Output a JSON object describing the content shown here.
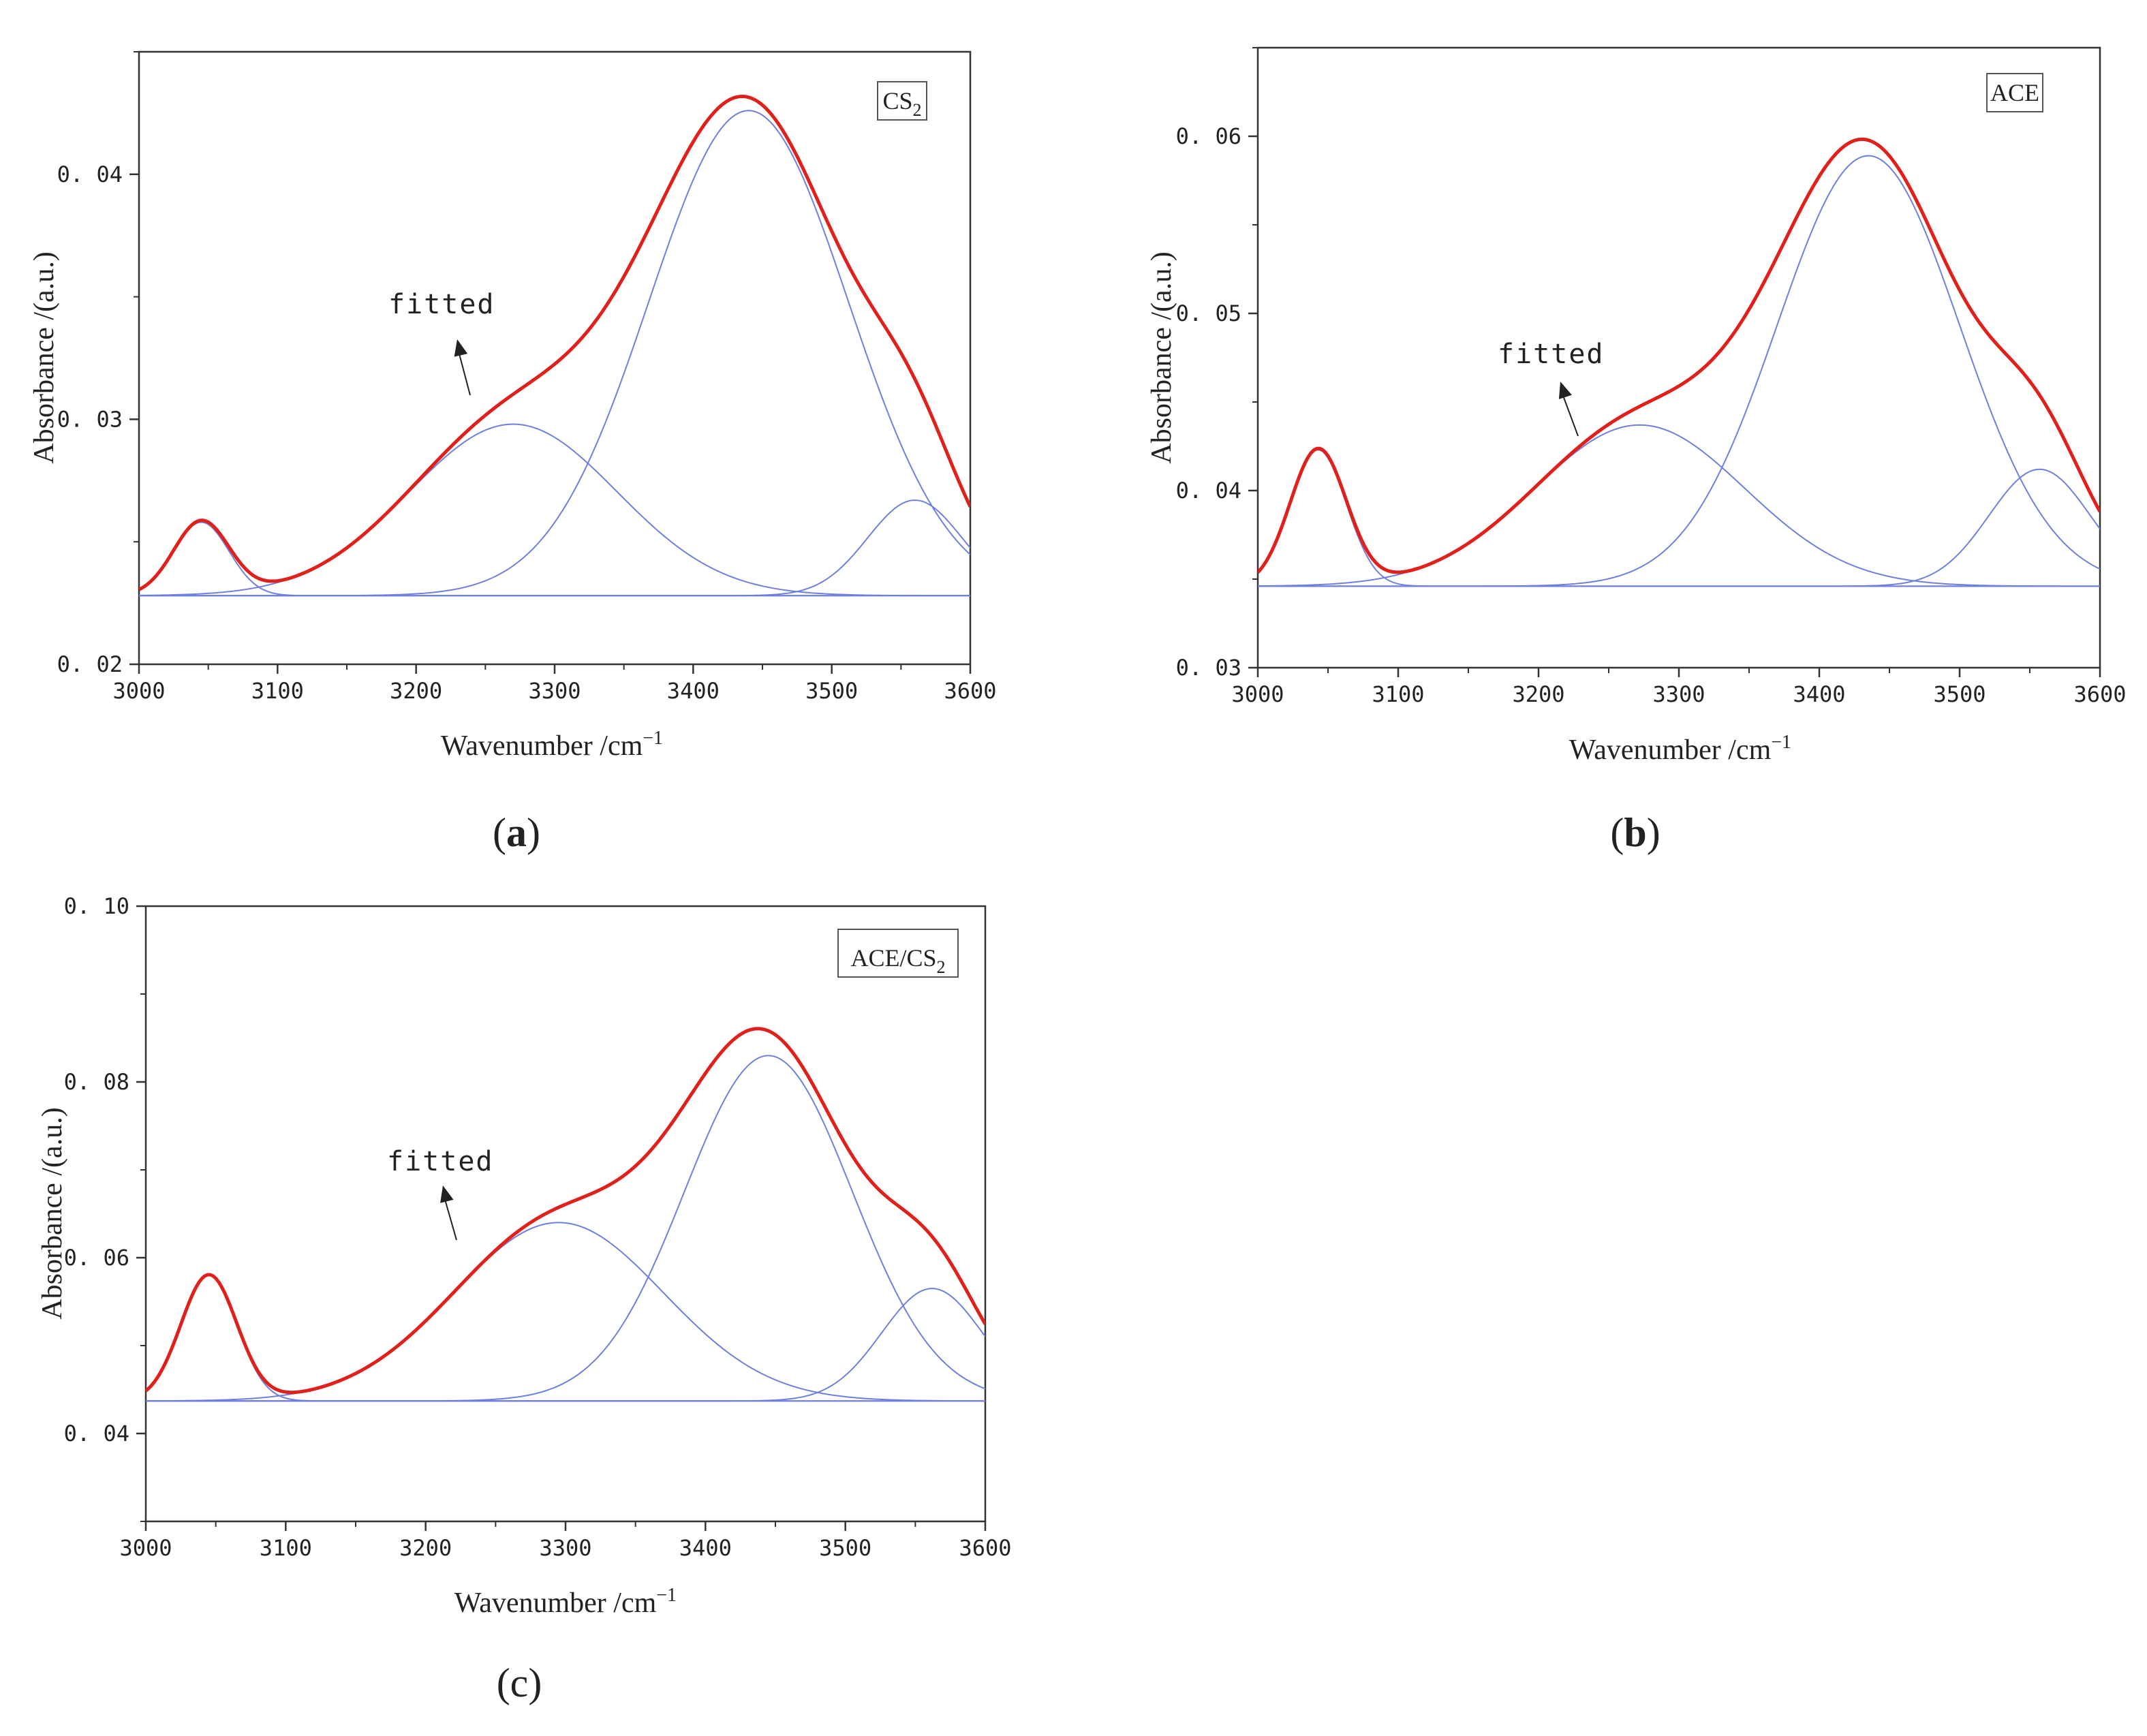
{
  "chart_data": [
    {
      "id": "a",
      "type": "line",
      "panel_label": "a",
      "panel_label_bold": true,
      "legend": {
        "main": "CS",
        "sub": "2"
      },
      "annotation": "fitted",
      "xlabel": {
        "main": "Wavenumber /cm",
        "sup": "−1"
      },
      "ylabel": "Absorbance /(a.u.)",
      "xlim": [
        3000,
        3600
      ],
      "ylim": [
        0.02,
        0.045
      ],
      "xticks": [
        3000,
        3100,
        3200,
        3300,
        3400,
        3500,
        3600
      ],
      "xtick_labels": [
        "3000",
        "3100",
        "3200",
        "3300",
        "3400",
        "3500",
        "3600"
      ],
      "yticks": [
        0.02,
        0.03,
        0.04
      ],
      "ytick_labels": [
        "0. 02",
        "0. 03",
        "0. 04"
      ],
      "baseline": 0.0228,
      "components": [
        {
          "center": 3045,
          "height": 0.003,
          "sigma": 20
        },
        {
          "center": 3270,
          "height": 0.007,
          "sigma": 75
        },
        {
          "center": 3440,
          "height": 0.0198,
          "sigma": 72
        },
        {
          "center": 3560,
          "height": 0.0039,
          "sigma": 34
        }
      ],
      "colors": {
        "fitted": "#e0201b",
        "component": "#6f7fe0"
      }
    },
    {
      "id": "b",
      "type": "line",
      "panel_label": "b",
      "panel_label_bold": true,
      "legend": {
        "main": "ACE",
        "sub": ""
      },
      "annotation": "fitted",
      "xlabel": {
        "main": "Wavenumber /cm",
        "sup": "−1"
      },
      "ylabel": "Absorbance /(a.u.)",
      "xlim": [
        3000,
        3600
      ],
      "ylim": [
        0.03,
        0.065
      ],
      "xticks": [
        3000,
        3100,
        3200,
        3300,
        3400,
        3500,
        3600
      ],
      "xtick_labels": [
        "3000",
        "3100",
        "3200",
        "3300",
        "3400",
        "3500",
        "3600"
      ],
      "yticks": [
        0.03,
        0.04,
        0.05,
        0.06
      ],
      "ytick_labels": [
        "0. 03",
        "0. 04",
        "0. 05",
        "0. 06"
      ],
      "baseline": 0.0346,
      "components": [
        {
          "center": 3043,
          "height": 0.0077,
          "sigma": 20
        },
        {
          "center": 3272,
          "height": 0.0091,
          "sigma": 75
        },
        {
          "center": 3435,
          "height": 0.0243,
          "sigma": 65
        },
        {
          "center": 3557,
          "height": 0.0066,
          "sigma": 36
        }
      ],
      "colors": {
        "fitted": "#e0201b",
        "component": "#6f7fe0"
      }
    },
    {
      "id": "c",
      "type": "line",
      "panel_label": "c",
      "panel_label_bold": false,
      "legend": {
        "main": "ACE/CS",
        "sub": "2"
      },
      "annotation": "fitted",
      "xlabel": {
        "main": "Wavenumber /cm",
        "sup": "−1"
      },
      "ylabel": "Absorbance /(a.u.)",
      "xlim": [
        3000,
        3600
      ],
      "ylim": [
        0.03,
        0.1
      ],
      "xticks": [
        3000,
        3100,
        3200,
        3300,
        3400,
        3500,
        3600
      ],
      "xtick_labels": [
        "3000",
        "3100",
        "3200",
        "3300",
        "3400",
        "3500",
        "3600"
      ],
      "yticks": [
        0.04,
        0.06,
        0.08,
        0.1
      ],
      "ytick_labels": [
        "0. 04",
        "0. 06",
        "0. 08",
        "0. 10"
      ],
      "baseline": 0.0437,
      "components": [
        {
          "center": 3045,
          "height": 0.0143,
          "sigma": 20
        },
        {
          "center": 3295,
          "height": 0.0203,
          "sigma": 75
        },
        {
          "center": 3445,
          "height": 0.0393,
          "sigma": 60
        },
        {
          "center": 3562,
          "height": 0.0128,
          "sigma": 36
        }
      ],
      "colors": {
        "fitted": "#e0201b",
        "component": "#6f7fe0"
      }
    }
  ]
}
